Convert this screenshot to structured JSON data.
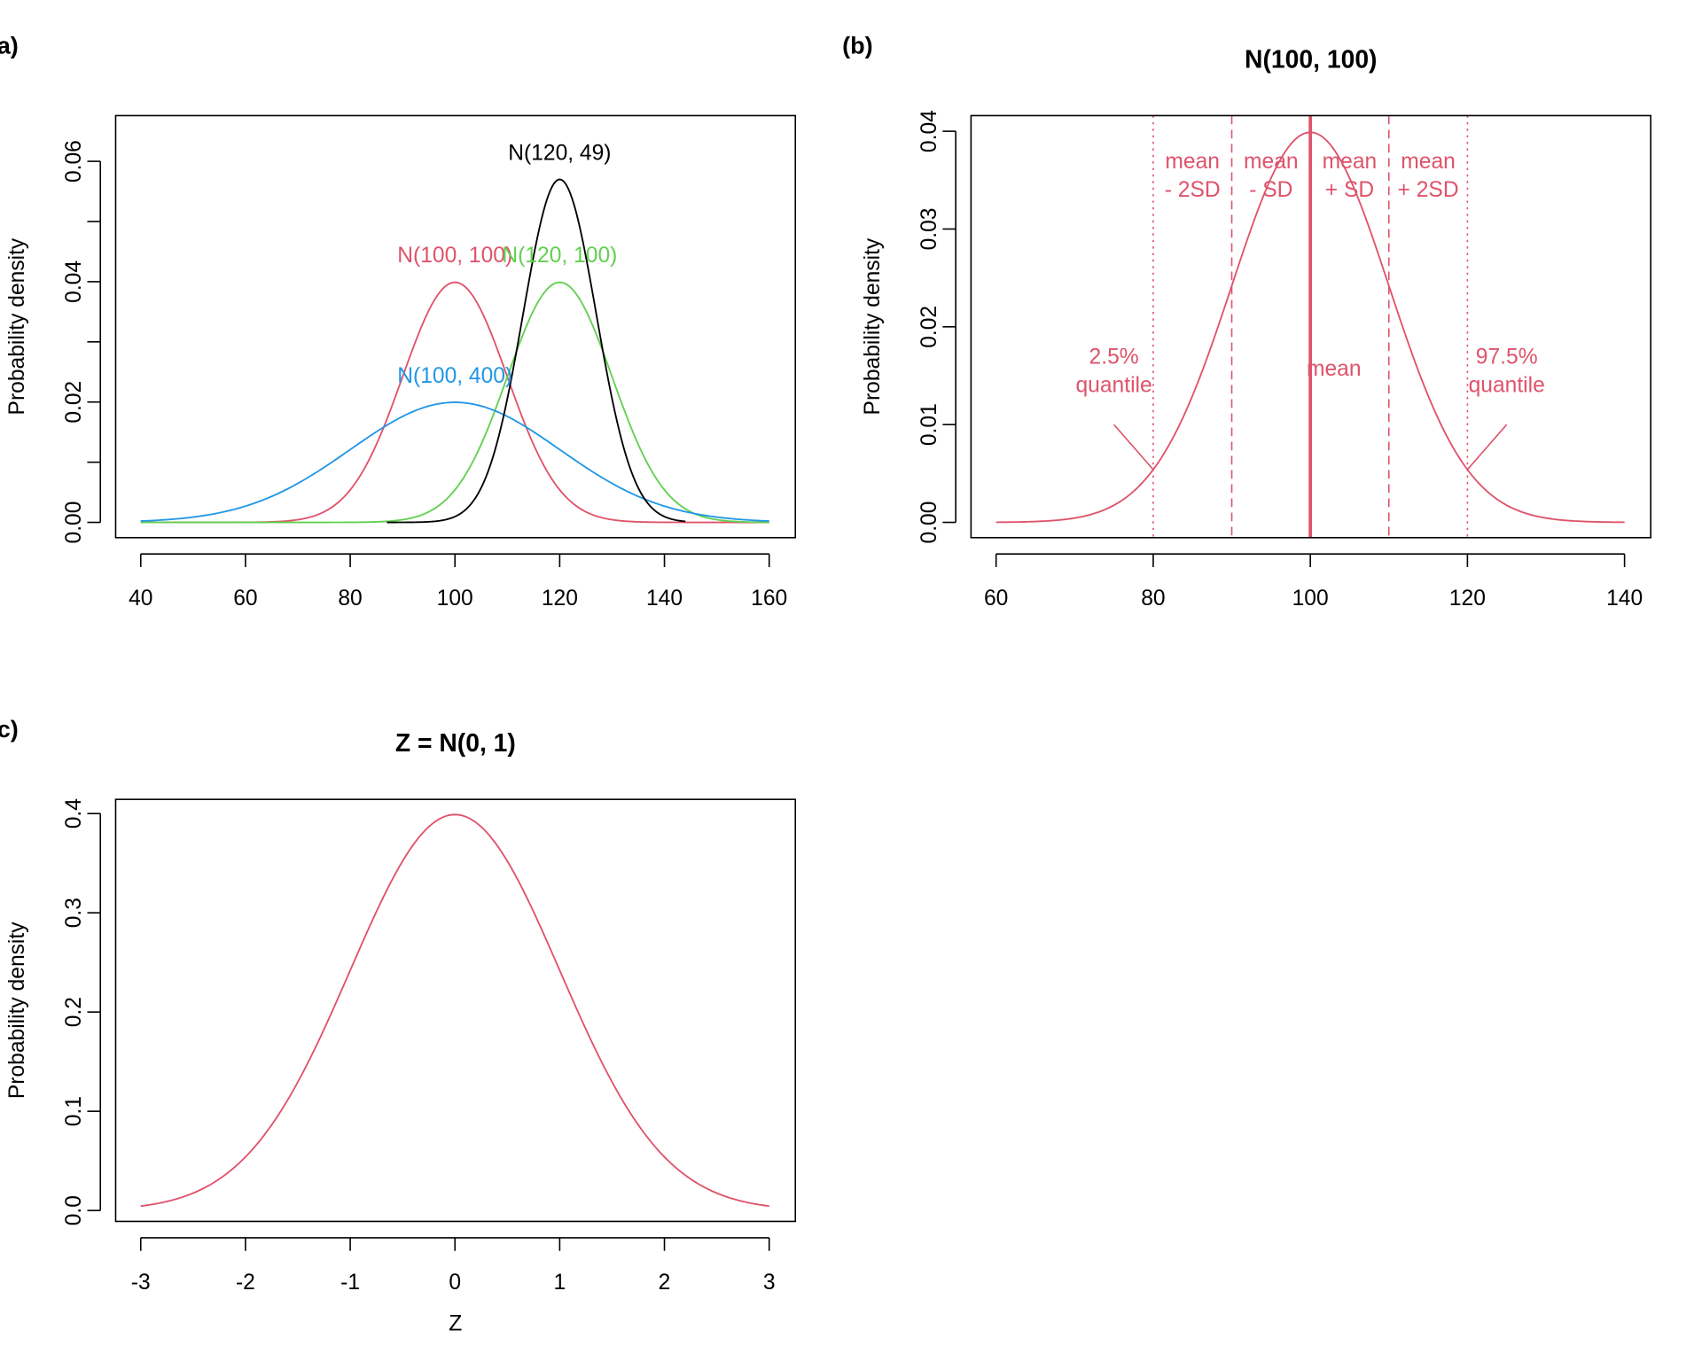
{
  "colors": {
    "red": "#DF536B",
    "green": "#61D04F",
    "blue": "#2297E6",
    "black": "#000000"
  },
  "chart_data": [
    {
      "panel_label": "(a)",
      "type": "line",
      "title": "",
      "xlabel": "",
      "ylabel": "Probability density",
      "xlim": [
        40,
        160
      ],
      "ylim": [
        0,
        0.0676
      ],
      "xticks": [
        40,
        60,
        80,
        100,
        120,
        140,
        160
      ],
      "yticks": [
        0,
        0.01,
        0.02,
        0.03,
        0.04,
        0.05,
        0.06
      ],
      "ytick_labels": [
        "0.00",
        "",
        "0.02",
        "",
        "0.04",
        "",
        "0.06"
      ],
      "grid": false,
      "series": [
        {
          "name": "N(100, 100)",
          "mean": 100,
          "variance": 100,
          "x_range": [
            40,
            160
          ],
          "color": "#DF536B",
          "label_x": 100,
          "label_y": 0.0432
        },
        {
          "name": "N(120, 100)",
          "mean": 120,
          "variance": 100,
          "x_range": [
            40,
            160
          ],
          "color": "#61D04F",
          "label_x": 120,
          "label_y": 0.0432
        },
        {
          "name": "N(100, 400)",
          "mean": 100,
          "variance": 400,
          "x_range": [
            40,
            160
          ],
          "color": "#2297E6",
          "label_x": 100,
          "label_y": 0.0232
        },
        {
          "name": "N(120, 49)",
          "mean": 120,
          "variance": 49,
          "x_range": [
            87,
            144
          ],
          "color": "#000000",
          "label_x": 120,
          "label_y": 0.0602
        }
      ]
    },
    {
      "panel_label": "(b)",
      "type": "line",
      "title": "N(100, 100)",
      "xlabel": "",
      "ylabel": "Probability density",
      "xlim": [
        60,
        140
      ],
      "ylim": [
        0,
        0.0416
      ],
      "xticks": [
        60,
        80,
        100,
        120,
        140
      ],
      "yticks": [
        0,
        0.01,
        0.02,
        0.03,
        0.04
      ],
      "ytick_labels": [
        "0.00",
        "0.01",
        "0.02",
        "0.03",
        "0.04"
      ],
      "grid": false,
      "series": [
        {
          "mean": 100,
          "variance": 100,
          "x_range": [
            60,
            140
          ],
          "color": "#DF536B"
        }
      ],
      "vlines": [
        {
          "x": 80,
          "style": "dotted"
        },
        {
          "x": 90,
          "style": "dashed"
        },
        {
          "x": 100,
          "style": "solid"
        },
        {
          "x": 110,
          "style": "dashed"
        },
        {
          "x": 120,
          "style": "dotted"
        }
      ],
      "annotations": [
        {
          "lines": [
            "mean",
            "- 2SD"
          ],
          "x": 85,
          "y": 0.0362
        },
        {
          "lines": [
            "mean",
            "- SD"
          ],
          "x": 95,
          "y": 0.0362
        },
        {
          "lines": [
            "mean",
            "+ SD"
          ],
          "x": 105,
          "y": 0.0362
        },
        {
          "lines": [
            "mean",
            "+ 2SD"
          ],
          "x": 115,
          "y": 0.0362
        },
        {
          "lines": [
            "2.5%",
            "quantile"
          ],
          "x": 75,
          "y": 0.0162
        },
        {
          "lines": [
            "97.5%",
            "quantile"
          ],
          "x": 125,
          "y": 0.0162
        },
        {
          "lines": [
            "mean"
          ],
          "x": 103,
          "y": 0.015
        }
      ],
      "pointers": [
        {
          "from": [
            75,
            0.01
          ],
          "to": [
            80,
            0.0054
          ]
        },
        {
          "from": [
            125,
            0.01
          ],
          "to": [
            120,
            0.0054
          ]
        }
      ]
    },
    {
      "panel_label": "(c)",
      "type": "line",
      "title": "Z = N(0, 1)",
      "xlabel": "Z",
      "ylabel": "Probability density",
      "xlim": [
        -3,
        3
      ],
      "ylim": [
        0,
        0.4143
      ],
      "xticks": [
        -3,
        -2,
        -1,
        0,
        1,
        2,
        3
      ],
      "yticks": [
        0,
        0.1,
        0.2,
        0.3,
        0.4
      ],
      "ytick_labels": [
        "0.0",
        "0.1",
        "0.2",
        "0.3",
        "0.4"
      ],
      "grid": false,
      "series": [
        {
          "mean": 0,
          "variance": 1,
          "x_range": [
            -3,
            3
          ],
          "color": "#DF536B"
        }
      ]
    }
  ]
}
